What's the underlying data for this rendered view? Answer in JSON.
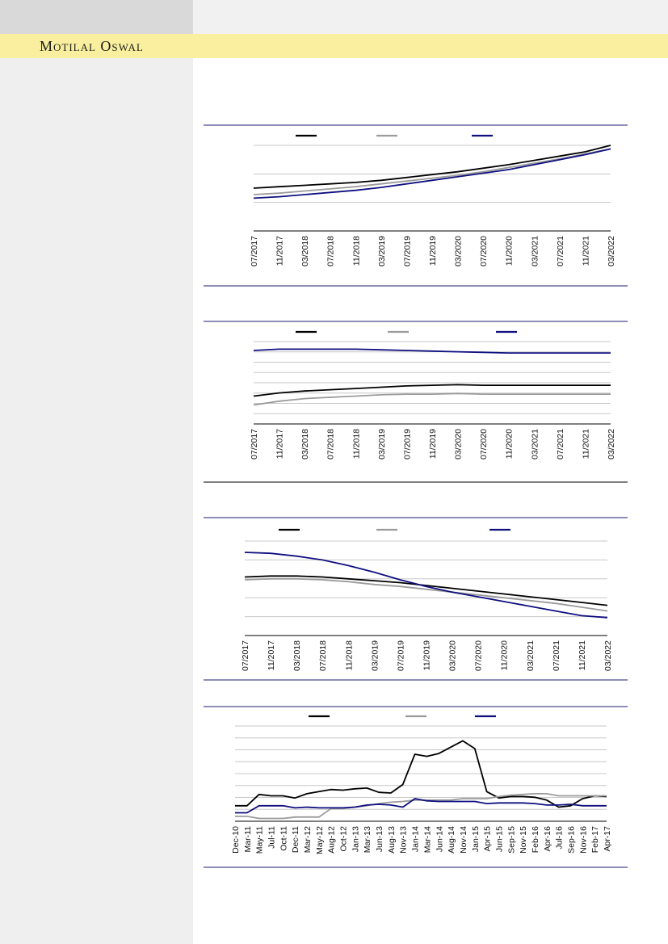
{
  "brand": {
    "name": "Motilal Oswal"
  },
  "colors": {
    "black": "#000000",
    "grey": "#9b9b9b",
    "navy": "#0f0f80",
    "rule": "#1b1b6f",
    "grid": "#c8c8c8"
  },
  "chart_data": [
    {
      "type": "line",
      "x": [
        "07/2017",
        "11/2017",
        "03/2018",
        "07/2018",
        "11/2018",
        "03/2019",
        "07/2019",
        "11/2019",
        "03/2020",
        "07/2020",
        "11/2020",
        "03/2021",
        "07/2021",
        "11/2021",
        "03/2022"
      ],
      "series": [
        {
          "color": "black",
          "values": [
            1.0,
            1.02,
            1.04,
            1.06,
            1.08,
            1.11,
            1.15,
            1.19,
            1.23,
            1.28,
            1.33,
            1.39,
            1.45,
            1.51,
            1.6
          ]
        },
        {
          "color": "grey",
          "values": [
            0.91,
            0.93,
            0.96,
            0.99,
            1.02,
            1.06,
            1.1,
            1.14,
            1.18,
            1.23,
            1.29,
            1.35,
            1.41,
            1.48,
            1.55
          ]
        },
        {
          "color": "navy",
          "values": [
            0.86,
            0.88,
            0.91,
            0.94,
            0.97,
            1.01,
            1.06,
            1.11,
            1.16,
            1.21,
            1.26,
            1.33,
            1.4,
            1.47,
            1.55
          ]
        }
      ],
      "gridlines": 3,
      "legend": "top"
    },
    {
      "type": "line",
      "x": [
        "07/2017",
        "11/2017",
        "03/2018",
        "07/2018",
        "11/2018",
        "03/2019",
        "07/2019",
        "11/2019",
        "03/2020",
        "07/2020",
        "11/2020",
        "03/2021",
        "07/2021",
        "11/2021",
        "03/2022"
      ],
      "series": [
        {
          "color": "black",
          "values": [
            2.7,
            2.95,
            3.1,
            3.2,
            3.3,
            3.4,
            3.5,
            3.55,
            3.6,
            3.55,
            3.55,
            3.55,
            3.55,
            3.55,
            3.55
          ]
        },
        {
          "color": "grey",
          "values": [
            2.0,
            2.3,
            2.5,
            2.6,
            2.7,
            2.8,
            2.85,
            2.85,
            2.9,
            2.85,
            2.85,
            2.85,
            2.85,
            2.85,
            2.85
          ]
        },
        {
          "color": "navy",
          "values": [
            6.3,
            6.4,
            6.4,
            6.4,
            6.4,
            6.35,
            6.3,
            6.25,
            6.2,
            6.15,
            6.1,
            6.1,
            6.1,
            6.1,
            6.1
          ]
        }
      ],
      "gridlines": 8,
      "legend": "top"
    },
    {
      "type": "line",
      "x": [
        "07/2017",
        "11/2017",
        "03/2018",
        "07/2018",
        "11/2018",
        "03/2019",
        "07/2019",
        "11/2019",
        "03/2020",
        "07/2020",
        "11/2020",
        "03/2021",
        "07/2021",
        "11/2021",
        "03/2022"
      ],
      "series": [
        {
          "color": "black",
          "values": [
            3.1,
            3.15,
            3.15,
            3.1,
            3.0,
            2.9,
            2.8,
            2.65,
            2.5,
            2.35,
            2.2,
            2.05,
            1.9,
            1.75,
            1.6
          ]
        },
        {
          "color": "grey",
          "values": [
            2.95,
            3.0,
            3.0,
            2.95,
            2.85,
            2.7,
            2.6,
            2.45,
            2.3,
            2.15,
            2.0,
            1.85,
            1.7,
            1.5,
            1.3
          ]
        },
        {
          "color": "navy",
          "values": [
            4.4,
            4.35,
            4.2,
            4.0,
            3.7,
            3.35,
            2.95,
            2.6,
            2.3,
            2.05,
            1.8,
            1.55,
            1.3,
            1.05,
            0.95
          ]
        }
      ],
      "gridlines": 5,
      "legend": "top"
    },
    {
      "type": "line",
      "x": [
        "Dec-10",
        "Mar-11",
        "May-11",
        "Jul-11",
        "Oct-11",
        "Dec-11",
        "Mar-12",
        "May-12",
        "Aug-12",
        "Oct-12",
        "Jan-13",
        "Mar-13",
        "Jun-13",
        "Aug-13",
        "Nov-13",
        "Jan-14",
        "Mar-14",
        "Jun-14",
        "Aug-14",
        "Nov-14",
        "Jan-15",
        "Apr-15",
        "Jun-15",
        "Sep-15",
        "Nov-15",
        "Feb-16",
        "Apr-16",
        "Jul-16",
        "Sep-16",
        "Nov-16",
        "Feb-17",
        "Apr-17"
      ],
      "series": [
        {
          "color": "black",
          "values": [
            1.2,
            1.2,
            2.8,
            2.6,
            2.6,
            2.3,
            2.9,
            3.2,
            3.5,
            3.4,
            3.6,
            3.7,
            3.1,
            3.0,
            4.2,
            8.5,
            8.2,
            8.6,
            9.5,
            10.4,
            9.3,
            3.2,
            2.3,
            2.5,
            2.5,
            2.4,
            2.0,
            1.0,
            1.2,
            2.2,
            2.6,
            2.5
          ]
        },
        {
          "color": "grey",
          "values": [
            -0.3,
            -0.3,
            -0.6,
            -0.6,
            -0.6,
            -0.4,
            -0.4,
            -0.4,
            0.8,
            0.8,
            1.0,
            1.2,
            1.5,
            1.7,
            1.8,
            2.0,
            2.0,
            2.0,
            2.0,
            2.2,
            2.2,
            2.2,
            2.5,
            2.7,
            2.8,
            2.9,
            2.9,
            2.6,
            2.6,
            2.6,
            2.6,
            2.6
          ]
        },
        {
          "color": "navy",
          "values": [
            0.2,
            0.2,
            1.2,
            1.2,
            1.2,
            0.9,
            1.0,
            0.9,
            0.9,
            0.9,
            1.0,
            1.3,
            1.4,
            1.3,
            1.0,
            2.2,
            1.9,
            1.8,
            1.8,
            1.8,
            1.8,
            1.5,
            1.6,
            1.6,
            1.6,
            1.5,
            1.3,
            1.3,
            1.4,
            1.2,
            1.2,
            1.2
          ]
        }
      ],
      "gridlines": 8,
      "legend": "top"
    }
  ]
}
